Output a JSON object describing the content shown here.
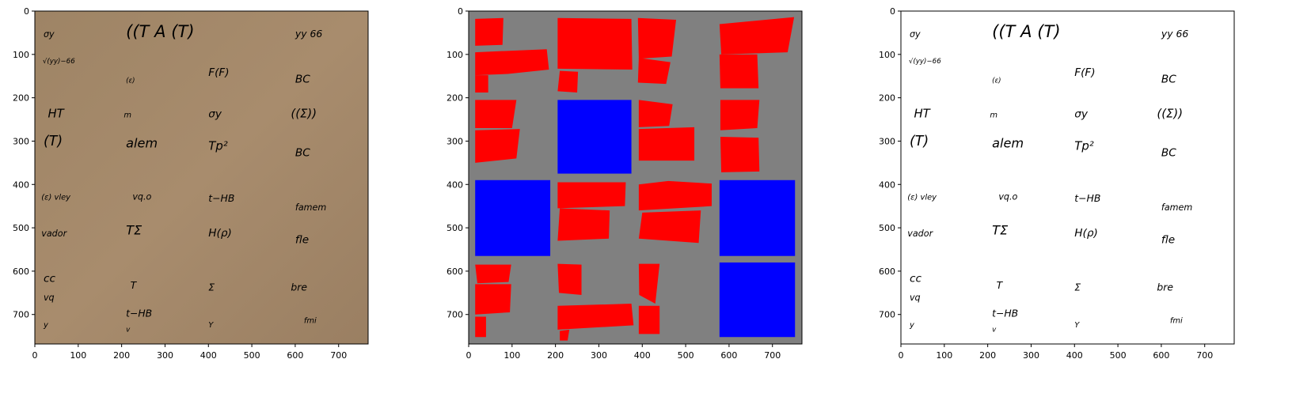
{
  "panels": [
    {
      "id": "manuscript",
      "xticks": [
        "0",
        "100",
        "200",
        "300",
        "400",
        "500",
        "600",
        "700"
      ],
      "yticks": [
        "0",
        "100",
        "200",
        "300",
        "400",
        "500",
        "600",
        "700"
      ]
    },
    {
      "id": "segmentation",
      "xticks": [
        "0",
        "100",
        "200",
        "300",
        "400",
        "500",
        "600",
        "700"
      ],
      "yticks": [
        "0",
        "100",
        "200",
        "300",
        "400",
        "500",
        "600",
        "700"
      ],
      "colors": {
        "background": "#808080",
        "text_region": "#ff0000",
        "blank_region": "#0000ff"
      }
    },
    {
      "id": "binarized",
      "xticks": [
        "0",
        "100",
        "200",
        "300",
        "400",
        "500",
        "600",
        "700"
      ],
      "yticks": [
        "0",
        "100",
        "200",
        "300",
        "400",
        "500",
        "600",
        "700"
      ]
    }
  ],
  "manuscript_text": [
    "σy",
    "((T A (T)",
    "yy 66",
    "√(yy)−66",
    "(ε)",
    "F(F)",
    "BC",
    "HT",
    "m",
    "σy",
    "((Σ))",
    "(T)",
    "alem",
    "Tp²",
    "BC",
    "(ε) vley",
    "vq.o",
    "t−HB",
    "famem",
    "vador",
    "TΣ",
    "H(ρ)",
    "fle",
    "cc",
    "vq",
    "T",
    "Σ",
    "bre",
    "y",
    "t−HB",
    "v",
    "Y",
    "fmi"
  ]
}
